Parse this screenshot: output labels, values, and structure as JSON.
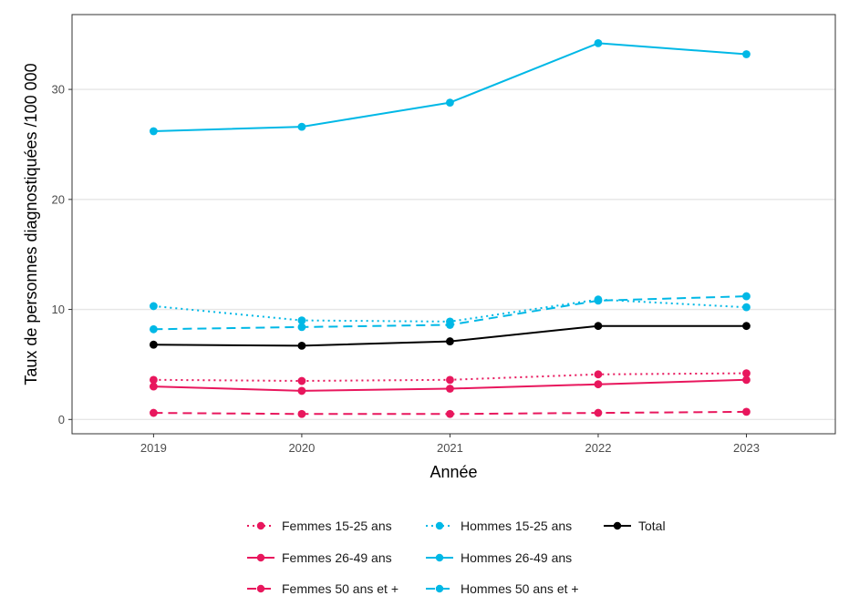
{
  "chart_data": {
    "type": "line",
    "title": "",
    "xlabel": "Année",
    "ylabel": "Taux de personnes diagnostiquées /100 000",
    "x": [
      2019,
      2020,
      2021,
      2022,
      2023
    ],
    "xlim": [
      2018.45,
      2023.6
    ],
    "ylim": [
      -1.3,
      36.8
    ],
    "yticks": [
      0,
      10,
      20,
      30
    ],
    "grid": "horizontal",
    "legend_position": "bottom",
    "series": [
      {
        "name": "Femmes 15-25 ans",
        "color": "#e8175d",
        "dash": "dotted",
        "values": [
          3.6,
          3.5,
          3.6,
          4.1,
          4.2
        ]
      },
      {
        "name": "Hommes 15-25 ans",
        "color": "#00b8e6",
        "dash": "dotted",
        "values": [
          10.3,
          9.0,
          8.9,
          10.9,
          10.2
        ]
      },
      {
        "name": "Total",
        "color": "#000000",
        "dash": "solid",
        "values": [
          6.8,
          6.7,
          7.1,
          8.5,
          8.5
        ]
      },
      {
        "name": "Femmes 26-49 ans",
        "color": "#e8175d",
        "dash": "solid",
        "values": [
          3.0,
          2.6,
          2.8,
          3.2,
          3.6
        ]
      },
      {
        "name": "Hommes 26-49 ans",
        "color": "#00b8e6",
        "dash": "solid",
        "values": [
          26.2,
          26.6,
          28.8,
          34.2,
          33.2
        ]
      },
      {
        "name": "Femmes 50 ans et +",
        "color": "#e8175d",
        "dash": "dashed",
        "values": [
          0.6,
          0.5,
          0.5,
          0.6,
          0.7
        ]
      },
      {
        "name": "Hommes 50 ans et +",
        "color": "#00b8e6",
        "dash": "dashed",
        "values": [
          8.2,
          8.4,
          8.6,
          10.8,
          11.2
        ]
      }
    ]
  }
}
